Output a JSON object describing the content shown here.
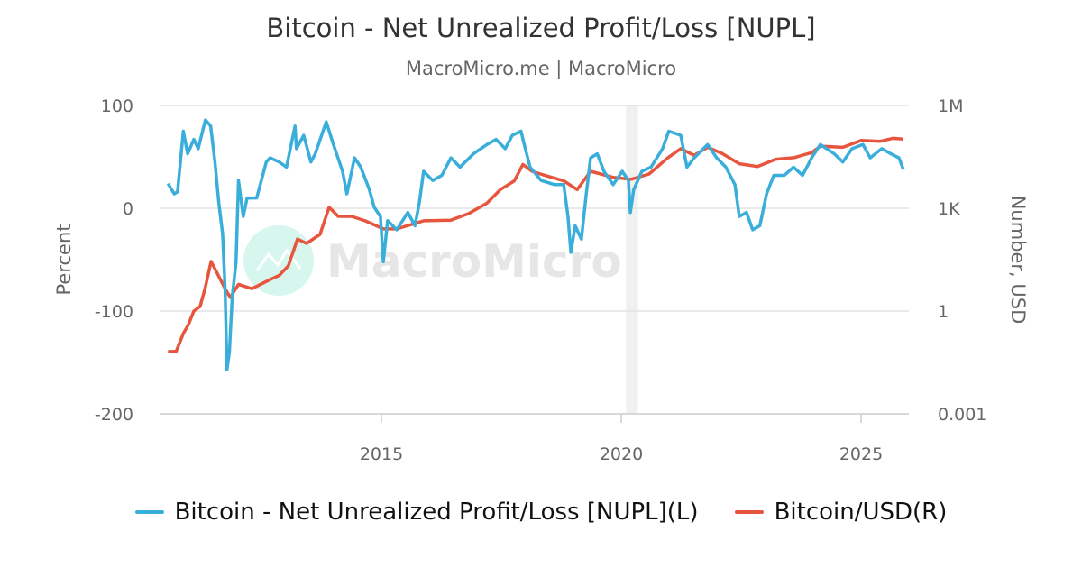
{
  "chart_data": {
    "type": "line",
    "title": "Bitcoin - Net Unrealized Profit/Loss [NUPL]",
    "subtitle": "MacroMicro.me | MacroMicro",
    "watermark": "MacroMicro",
    "ylabel_left": "Percent",
    "ylabel_right": "Number, USD",
    "y_left": {
      "range": [
        -200,
        100
      ],
      "ticks": [
        "100",
        "0",
        "-100",
        "-200"
      ],
      "tick_values": [
        100,
        0,
        -100,
        -200
      ]
    },
    "y_right": {
      "scale": "log",
      "range": [
        0.001,
        1000000
      ],
      "ticks": [
        "1M",
        "1K",
        "1",
        "0.001"
      ],
      "tick_values": [
        1000000,
        1000,
        1,
        0.001
      ]
    },
    "x": {
      "range": [
        2010.0,
        2026.1
      ],
      "ticks": [
        "2015",
        "2020",
        "2025"
      ],
      "tick_values": [
        2015,
        2020,
        2025
      ]
    },
    "grid": true,
    "legend_position": "bottom",
    "shaded_band": {
      "from": 2020.1,
      "to": 2020.35,
      "color": "#f0f0f0"
    },
    "series": [
      {
        "name": "Bitcoin - Net Unrealized Profit/Loss [NUPL](L)",
        "axis": "left",
        "color": "#3aaedb",
        "points": [
          [
            2010.55,
            24
          ],
          [
            2010.68,
            14
          ],
          [
            2010.75,
            16
          ],
          [
            2010.87,
            75
          ],
          [
            2010.96,
            53
          ],
          [
            2011.09,
            67
          ],
          [
            2011.18,
            58
          ],
          [
            2011.33,
            86
          ],
          [
            2011.44,
            80
          ],
          [
            2011.53,
            45
          ],
          [
            2011.61,
            5
          ],
          [
            2011.69,
            -25
          ],
          [
            2011.74,
            -78
          ],
          [
            2011.78,
            -157
          ],
          [
            2011.83,
            -140
          ],
          [
            2011.89,
            -87
          ],
          [
            2011.97,
            -52
          ],
          [
            2012.02,
            27
          ],
          [
            2012.12,
            -8
          ],
          [
            2012.2,
            10
          ],
          [
            2012.4,
            10
          ],
          [
            2012.6,
            45
          ],
          [
            2012.68,
            49
          ],
          [
            2012.87,
            45
          ],
          [
            2013.02,
            40
          ],
          [
            2013.2,
            80
          ],
          [
            2013.23,
            58
          ],
          [
            2013.38,
            71
          ],
          [
            2013.53,
            45
          ],
          [
            2013.62,
            53
          ],
          [
            2013.85,
            84
          ],
          [
            2014.0,
            62
          ],
          [
            2014.19,
            36
          ],
          [
            2014.28,
            14
          ],
          [
            2014.44,
            49
          ],
          [
            2014.57,
            40
          ],
          [
            2014.75,
            18
          ],
          [
            2014.85,
            1
          ],
          [
            2014.98,
            -8
          ],
          [
            2015.04,
            -52
          ],
          [
            2015.13,
            -12
          ],
          [
            2015.32,
            -21
          ],
          [
            2015.55,
            -4
          ],
          [
            2015.7,
            -17
          ],
          [
            2015.79,
            5
          ],
          [
            2015.88,
            36
          ],
          [
            2016.07,
            27
          ],
          [
            2016.26,
            32
          ],
          [
            2016.45,
            49
          ],
          [
            2016.64,
            40
          ],
          [
            2016.92,
            53
          ],
          [
            2017.2,
            62
          ],
          [
            2017.39,
            67
          ],
          [
            2017.58,
            58
          ],
          [
            2017.73,
            71
          ],
          [
            2017.91,
            75
          ],
          [
            2018.0,
            58
          ],
          [
            2018.1,
            40
          ],
          [
            2018.33,
            27
          ],
          [
            2018.61,
            23
          ],
          [
            2018.8,
            23
          ],
          [
            2018.89,
            -8
          ],
          [
            2018.95,
            -43
          ],
          [
            2019.04,
            -17
          ],
          [
            2019.17,
            -30
          ],
          [
            2019.27,
            14
          ],
          [
            2019.36,
            49
          ],
          [
            2019.5,
            53
          ],
          [
            2019.64,
            36
          ],
          [
            2019.83,
            23
          ],
          [
            2020.02,
            36
          ],
          [
            2020.15,
            27
          ],
          [
            2020.19,
            -4
          ],
          [
            2020.26,
            18
          ],
          [
            2020.43,
            36
          ],
          [
            2020.62,
            40
          ],
          [
            2020.86,
            58
          ],
          [
            2020.99,
            75
          ],
          [
            2021.24,
            71
          ],
          [
            2021.37,
            40
          ],
          [
            2021.52,
            49
          ],
          [
            2021.8,
            62
          ],
          [
            2021.99,
            49
          ],
          [
            2022.18,
            40
          ],
          [
            2022.37,
            23
          ],
          [
            2022.46,
            -8
          ],
          [
            2022.61,
            -4
          ],
          [
            2022.74,
            -21
          ],
          [
            2022.89,
            -17
          ],
          [
            2023.03,
            14
          ],
          [
            2023.18,
            32
          ],
          [
            2023.4,
            32
          ],
          [
            2023.59,
            40
          ],
          [
            2023.78,
            32
          ],
          [
            2023.97,
            49
          ],
          [
            2024.15,
            62
          ],
          [
            2024.44,
            53
          ],
          [
            2024.62,
            45
          ],
          [
            2024.81,
            58
          ],
          [
            2025.04,
            62
          ],
          [
            2025.19,
            49
          ],
          [
            2025.43,
            58
          ],
          [
            2025.66,
            52
          ],
          [
            2025.79,
            49
          ],
          [
            2025.88,
            38
          ]
        ]
      },
      {
        "name": "Bitcoin/USD(R)",
        "axis": "right",
        "color": "#e8553e",
        "points": [
          [
            2010.55,
            0.066
          ],
          [
            2010.72,
            0.066
          ],
          [
            2010.87,
            0.22
          ],
          [
            2010.98,
            0.41
          ],
          [
            2011.09,
            1
          ],
          [
            2011.22,
            1.35
          ],
          [
            2011.33,
            5
          ],
          [
            2011.45,
            28
          ],
          [
            2011.55,
            15
          ],
          [
            2011.74,
            4.5
          ],
          [
            2011.85,
            2.5
          ],
          [
            2012.02,
            6
          ],
          [
            2012.3,
            4.5
          ],
          [
            2012.68,
            8.3
          ],
          [
            2012.87,
            11
          ],
          [
            2013.06,
            21
          ],
          [
            2013.25,
            126
          ],
          [
            2013.44,
            94
          ],
          [
            2013.72,
            173
          ],
          [
            2013.91,
            1070
          ],
          [
            2014.1,
            580
          ],
          [
            2014.38,
            580
          ],
          [
            2014.66,
            430
          ],
          [
            2015.04,
            250
          ],
          [
            2015.32,
            250
          ],
          [
            2015.88,
            430
          ],
          [
            2016.45,
            450
          ],
          [
            2016.82,
            700
          ],
          [
            2017.2,
            1400
          ],
          [
            2017.48,
            3500
          ],
          [
            2017.77,
            6300
          ],
          [
            2017.95,
            19000
          ],
          [
            2018.14,
            12000
          ],
          [
            2018.42,
            9000
          ],
          [
            2018.8,
            6300
          ],
          [
            2019.08,
            3500
          ],
          [
            2019.36,
            12000
          ],
          [
            2019.83,
            8000
          ],
          [
            2020.2,
            7000
          ],
          [
            2020.58,
            10000
          ],
          [
            2020.96,
            29000
          ],
          [
            2021.24,
            55000
          ],
          [
            2021.52,
            35000
          ],
          [
            2021.8,
            60000
          ],
          [
            2022.1,
            40000
          ],
          [
            2022.46,
            20000
          ],
          [
            2022.84,
            16500
          ],
          [
            2023.22,
            27000
          ],
          [
            2023.6,
            30000
          ],
          [
            2023.97,
            42000
          ],
          [
            2024.15,
            65000
          ],
          [
            2024.62,
            60000
          ],
          [
            2025.0,
            95000
          ],
          [
            2025.4,
            90000
          ],
          [
            2025.66,
            110000
          ],
          [
            2025.88,
            105000
          ]
        ]
      }
    ]
  }
}
